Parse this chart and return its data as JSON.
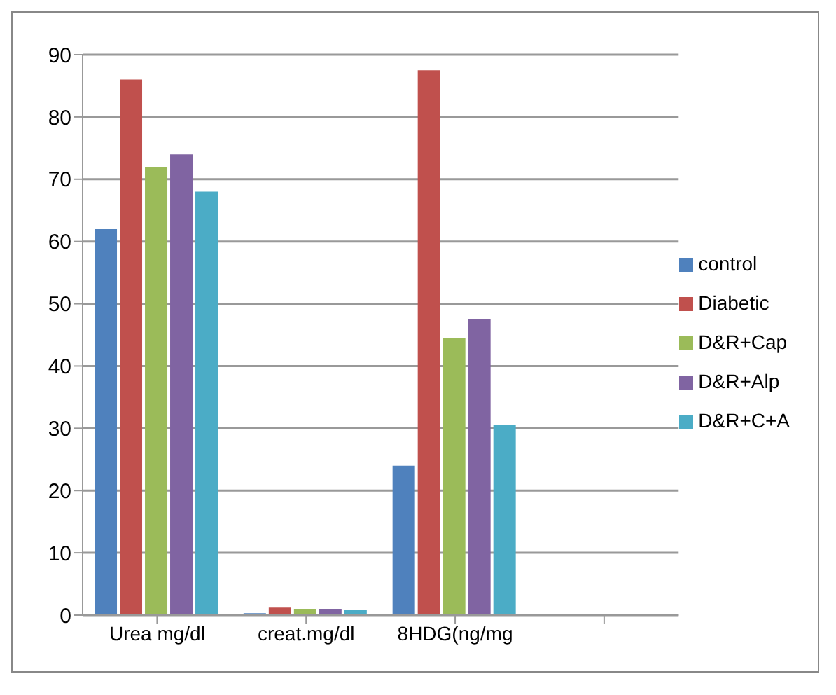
{
  "chart_data": {
    "type": "bar",
    "categories": [
      "Urea mg/dl",
      "creat.mg/dl",
      "8HDG(ng/mg",
      null
    ],
    "series": [
      {
        "name": "control",
        "color": "#4f81bd",
        "values": [
          62,
          0.3,
          24,
          null
        ]
      },
      {
        "name": "Diabetic",
        "color": "#c0504d",
        "values": [
          86,
          1.2,
          87.5,
          null
        ]
      },
      {
        "name": "D&R+Cap",
        "color": "#9bbb59",
        "values": [
          72,
          1,
          44.5,
          null
        ]
      },
      {
        "name": "D&R+Alp",
        "color": "#8064a2",
        "values": [
          74,
          1,
          47.5,
          null
        ]
      },
      {
        "name": "D&R+C+A",
        "color": "#4bacc6",
        "values": [
          68,
          0.8,
          30.5,
          null
        ]
      }
    ],
    "ylim": [
      0,
      90
    ],
    "yticks": [
      0,
      10,
      20,
      30,
      40,
      50,
      60,
      70,
      80,
      90
    ],
    "grid": "y",
    "legend": "right"
  }
}
